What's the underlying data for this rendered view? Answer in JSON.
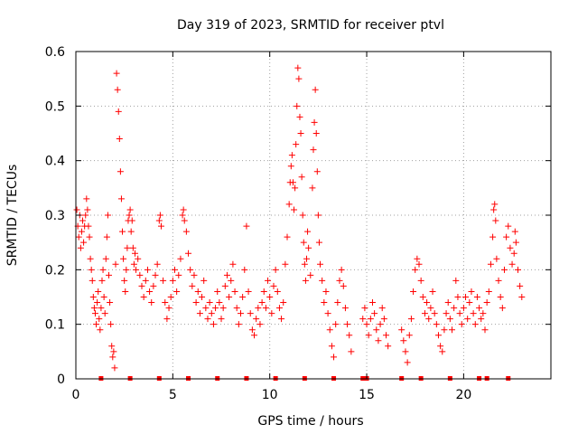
{
  "chart_data": {
    "type": "scatter",
    "title": "Day 319 of 2023, SRMTID for receiver ptvl",
    "xlabel": "GPS time / hours",
    "ylabel": "SRMTID / TECUs",
    "xlim": [
      0,
      24.5
    ],
    "ylim": [
      0,
      0.6
    ],
    "xticks": [
      0,
      5,
      10,
      15,
      20
    ],
    "yticks": [
      0,
      0.1,
      0.2,
      0.3,
      0.4,
      0.5,
      0.6
    ],
    "xtick_labels": [
      "0",
      "5",
      "10",
      "15",
      "20"
    ],
    "ytick_labels": [
      "0",
      "0.1",
      "0.2",
      "0.3",
      "0.4",
      "0.5",
      "0.6"
    ],
    "grid": true,
    "marker": "+",
    "color": "#ff0000",
    "series": [
      {
        "name": "SRMTID",
        "points": [
          [
            0.05,
            0.31
          ],
          [
            0.1,
            0.28
          ],
          [
            0.15,
            0.26
          ],
          [
            0.2,
            0.3
          ],
          [
            0.25,
            0.24
          ],
          [
            0.3,
            0.27
          ],
          [
            0.35,
            0.29
          ],
          [
            0.4,
            0.25
          ],
          [
            0.45,
            0.28
          ],
          [
            0.5,
            0.3
          ],
          [
            0.55,
            0.33
          ],
          [
            0.6,
            0.31
          ],
          [
            0.65,
            0.28
          ],
          [
            0.7,
            0.26
          ],
          [
            0.75,
            0.22
          ],
          [
            0.8,
            0.2
          ],
          [
            0.85,
            0.18
          ],
          [
            0.9,
            0.15
          ],
          [
            0.95,
            0.13
          ],
          [
            1.0,
            0.12
          ],
          [
            1.05,
            0.1
          ],
          [
            1.1,
            0.14
          ],
          [
            1.15,
            0.16
          ],
          [
            1.2,
            0.11
          ],
          [
            1.25,
            0.09
          ],
          [
            1.3,
            0.13
          ],
          [
            1.35,
            0.18
          ],
          [
            1.4,
            0.2
          ],
          [
            1.45,
            0.15
          ],
          [
            1.5,
            0.12
          ],
          [
            1.55,
            0.22
          ],
          [
            1.6,
            0.26
          ],
          [
            1.65,
            0.3
          ],
          [
            1.7,
            0.19
          ],
          [
            1.75,
            0.14
          ],
          [
            1.8,
            0.1
          ],
          [
            1.85,
            0.06
          ],
          [
            1.9,
            0.04
          ],
          [
            1.95,
            0.05
          ],
          [
            2.0,
            0.02
          ],
          [
            2.05,
            0.21
          ],
          [
            2.1,
            0.56
          ],
          [
            2.15,
            0.53
          ],
          [
            2.2,
            0.49
          ],
          [
            2.25,
            0.44
          ],
          [
            2.3,
            0.38
          ],
          [
            2.35,
            0.33
          ],
          [
            2.4,
            0.27
          ],
          [
            2.45,
            0.22
          ],
          [
            2.5,
            0.18
          ],
          [
            2.55,
            0.16
          ],
          [
            2.6,
            0.2
          ],
          [
            2.65,
            0.24
          ],
          [
            2.7,
            0.29
          ],
          [
            2.75,
            0.3
          ],
          [
            2.8,
            0.31
          ],
          [
            2.85,
            0.27
          ],
          [
            2.9,
            0.29
          ],
          [
            2.95,
            0.24
          ],
          [
            3.0,
            0.21
          ],
          [
            3.05,
            0.23
          ],
          [
            3.1,
            0.2
          ],
          [
            3.2,
            0.22
          ],
          [
            3.3,
            0.19
          ],
          [
            3.4,
            0.17
          ],
          [
            3.5,
            0.15
          ],
          [
            3.6,
            0.18
          ],
          [
            3.7,
            0.2
          ],
          [
            3.8,
            0.16
          ],
          [
            3.9,
            0.14
          ],
          [
            4.0,
            0.17
          ],
          [
            4.1,
            0.19
          ],
          [
            4.2,
            0.21
          ],
          [
            4.3,
            0.29
          ],
          [
            4.35,
            0.3
          ],
          [
            4.4,
            0.28
          ],
          [
            4.5,
            0.18
          ],
          [
            4.6,
            0.14
          ],
          [
            4.7,
            0.11
          ],
          [
            4.8,
            0.13
          ],
          [
            4.9,
            0.15
          ],
          [
            5.0,
            0.18
          ],
          [
            5.1,
            0.2
          ],
          [
            5.2,
            0.16
          ],
          [
            5.3,
            0.19
          ],
          [
            5.4,
            0.22
          ],
          [
            5.5,
            0.3
          ],
          [
            5.55,
            0.31
          ],
          [
            5.6,
            0.29
          ],
          [
            5.7,
            0.27
          ],
          [
            5.8,
            0.23
          ],
          [
            5.9,
            0.2
          ],
          [
            6.0,
            0.17
          ],
          [
            6.1,
            0.19
          ],
          [
            6.2,
            0.14
          ],
          [
            6.3,
            0.16
          ],
          [
            6.4,
            0.12
          ],
          [
            6.5,
            0.15
          ],
          [
            6.6,
            0.18
          ],
          [
            6.7,
            0.13
          ],
          [
            6.8,
            0.11
          ],
          [
            6.9,
            0.14
          ],
          [
            7.0,
            0.12
          ],
          [
            7.1,
            0.1
          ],
          [
            7.2,
            0.13
          ],
          [
            7.3,
            0.16
          ],
          [
            7.4,
            0.14
          ],
          [
            7.5,
            0.11
          ],
          [
            7.6,
            0.13
          ],
          [
            7.7,
            0.17
          ],
          [
            7.8,
            0.19
          ],
          [
            7.9,
            0.15
          ],
          [
            8.0,
            0.18
          ],
          [
            8.1,
            0.21
          ],
          [
            8.2,
            0.16
          ],
          [
            8.3,
            0.13
          ],
          [
            8.4,
            0.1
          ],
          [
            8.5,
            0.12
          ],
          [
            8.6,
            0.15
          ],
          [
            8.7,
            0.2
          ],
          [
            8.8,
            0.28
          ],
          [
            8.9,
            0.16
          ],
          [
            9.0,
            0.12
          ],
          [
            9.1,
            0.09
          ],
          [
            9.2,
            0.08
          ],
          [
            9.3,
            0.11
          ],
          [
            9.4,
            0.13
          ],
          [
            9.5,
            0.1
          ],
          [
            9.6,
            0.14
          ],
          [
            9.7,
            0.16
          ],
          [
            9.8,
            0.13
          ],
          [
            9.9,
            0.18
          ],
          [
            10.0,
            0.15
          ],
          [
            10.1,
            0.12
          ],
          [
            10.2,
            0.17
          ],
          [
            10.3,
            0.2
          ],
          [
            10.4,
            0.16
          ],
          [
            10.5,
            0.13
          ],
          [
            10.6,
            0.11
          ],
          [
            10.7,
            0.14
          ],
          [
            10.8,
            0.21
          ],
          [
            10.9,
            0.26
          ],
          [
            11.0,
            0.32
          ],
          [
            11.05,
            0.36
          ],
          [
            11.1,
            0.39
          ],
          [
            11.15,
            0.41
          ],
          [
            11.2,
            0.36
          ],
          [
            11.25,
            0.31
          ],
          [
            11.3,
            0.35
          ],
          [
            11.35,
            0.43
          ],
          [
            11.4,
            0.5
          ],
          [
            11.45,
            0.57
          ],
          [
            11.5,
            0.55
          ],
          [
            11.55,
            0.48
          ],
          [
            11.6,
            0.45
          ],
          [
            11.65,
            0.37
          ],
          [
            11.7,
            0.3
          ],
          [
            11.75,
            0.25
          ],
          [
            11.8,
            0.21
          ],
          [
            11.85,
            0.18
          ],
          [
            11.9,
            0.22
          ],
          [
            11.95,
            0.27
          ],
          [
            12.0,
            0.24
          ],
          [
            12.1,
            0.19
          ],
          [
            12.2,
            0.35
          ],
          [
            12.25,
            0.42
          ],
          [
            12.3,
            0.47
          ],
          [
            12.35,
            0.53
          ],
          [
            12.4,
            0.45
          ],
          [
            12.45,
            0.38
          ],
          [
            12.5,
            0.3
          ],
          [
            12.55,
            0.25
          ],
          [
            12.6,
            0.21
          ],
          [
            12.7,
            0.18
          ],
          [
            12.8,
            0.14
          ],
          [
            12.9,
            0.16
          ],
          [
            13.0,
            0.12
          ],
          [
            13.1,
            0.09
          ],
          [
            13.2,
            0.06
          ],
          [
            13.3,
            0.04
          ],
          [
            13.4,
            0.1
          ],
          [
            13.5,
            0.14
          ],
          [
            13.6,
            0.18
          ],
          [
            13.7,
            0.2
          ],
          [
            13.8,
            0.17
          ],
          [
            13.9,
            0.13
          ],
          [
            14.0,
            0.1
          ],
          [
            14.1,
            0.08
          ],
          [
            14.2,
            0.05
          ],
          [
            14.8,
            0.11
          ],
          [
            14.9,
            0.13
          ],
          [
            15.0,
            0.1
          ],
          [
            15.1,
            0.08
          ],
          [
            15.2,
            0.11
          ],
          [
            15.3,
            0.14
          ],
          [
            15.4,
            0.12
          ],
          [
            15.5,
            0.09
          ],
          [
            15.6,
            0.07
          ],
          [
            15.7,
            0.1
          ],
          [
            15.8,
            0.13
          ],
          [
            15.9,
            0.11
          ],
          [
            16.0,
            0.08
          ],
          [
            16.1,
            0.06
          ],
          [
            16.8,
            0.09
          ],
          [
            16.9,
            0.07
          ],
          [
            17.0,
            0.05
          ],
          [
            17.1,
            0.03
          ],
          [
            17.2,
            0.08
          ],
          [
            17.3,
            0.11
          ],
          [
            17.4,
            0.16
          ],
          [
            17.5,
            0.2
          ],
          [
            17.6,
            0.22
          ],
          [
            17.7,
            0.21
          ],
          [
            17.8,
            0.18
          ],
          [
            17.9,
            0.15
          ],
          [
            18.0,
            0.12
          ],
          [
            18.1,
            0.14
          ],
          [
            18.2,
            0.11
          ],
          [
            18.3,
            0.13
          ],
          [
            18.4,
            0.16
          ],
          [
            18.5,
            0.12
          ],
          [
            18.6,
            0.1
          ],
          [
            18.7,
            0.08
          ],
          [
            18.8,
            0.06
          ],
          [
            18.9,
            0.05
          ],
          [
            19.0,
            0.09
          ],
          [
            19.1,
            0.12
          ],
          [
            19.2,
            0.14
          ],
          [
            19.3,
            0.11
          ],
          [
            19.4,
            0.09
          ],
          [
            19.5,
            0.13
          ],
          [
            19.6,
            0.18
          ],
          [
            19.7,
            0.15
          ],
          [
            19.8,
            0.12
          ],
          [
            19.9,
            0.1
          ],
          [
            20.0,
            0.13
          ],
          [
            20.1,
            0.15
          ],
          [
            20.2,
            0.11
          ],
          [
            20.3,
            0.14
          ],
          [
            20.4,
            0.16
          ],
          [
            20.5,
            0.12
          ],
          [
            20.6,
            0.1
          ],
          [
            20.7,
            0.15
          ],
          [
            20.8,
            0.13
          ],
          [
            20.9,
            0.11
          ],
          [
            21.0,
            0.12
          ],
          [
            21.1,
            0.09
          ],
          [
            21.2,
            0.14
          ],
          [
            21.3,
            0.16
          ],
          [
            21.4,
            0.21
          ],
          [
            21.5,
            0.26
          ],
          [
            21.55,
            0.31
          ],
          [
            21.6,
            0.32
          ],
          [
            21.65,
            0.29
          ],
          [
            21.7,
            0.22
          ],
          [
            21.8,
            0.18
          ],
          [
            21.9,
            0.15
          ],
          [
            22.0,
            0.13
          ],
          [
            22.1,
            0.2
          ],
          [
            22.2,
            0.26
          ],
          [
            22.3,
            0.28
          ],
          [
            22.4,
            0.24
          ],
          [
            22.5,
            0.21
          ],
          [
            22.6,
            0.23
          ],
          [
            22.65,
            0.27
          ],
          [
            22.7,
            0.25
          ],
          [
            22.8,
            0.2
          ],
          [
            22.9,
            0.17
          ],
          [
            23.0,
            0.15
          ]
        ]
      }
    ],
    "gap_markers_y": 0,
    "gap_markers_x": [
      1.3,
      2.8,
      4.3,
      5.8,
      7.3,
      8.8,
      10.3,
      11.8,
      13.3,
      14.8,
      15.0,
      16.8,
      17.8,
      19.3,
      20.8,
      21.2,
      22.3
    ]
  }
}
